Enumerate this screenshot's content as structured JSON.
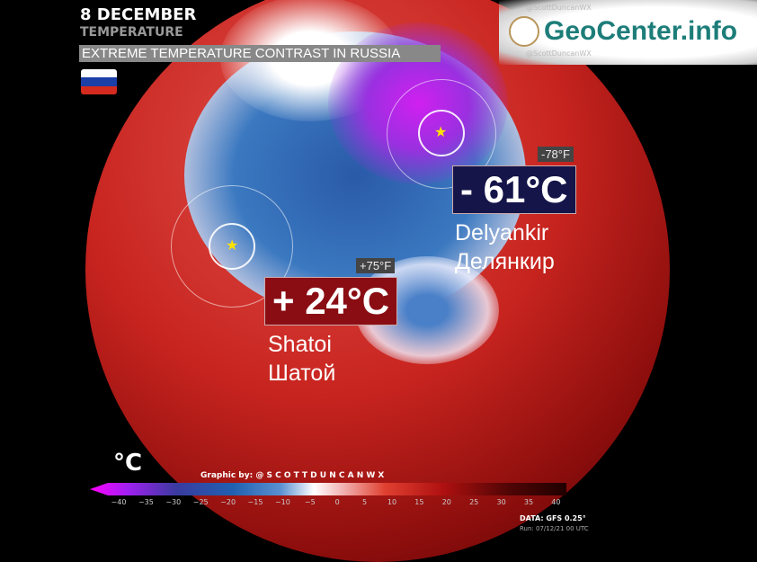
{
  "header": {
    "date": "8 DECEMBER",
    "variable": "TEMPERATURE",
    "subtitle": "EXTREME TEMPERATURE CONTRAST IN RUSSIA"
  },
  "flag": {
    "country": "Russia",
    "colors": [
      "#ffffff",
      "#1c3fa8",
      "#d52b1e"
    ]
  },
  "watermark": {
    "logo_text": "GeoCenter.info",
    "logo_color": "#1d7d79",
    "facebook": "@ScottDuncanWX",
    "twitter": "@ScottDuncanWX"
  },
  "cold": {
    "fahrenheit": "-78°F",
    "celsius": "- 61°C",
    "name_en": "Delyankir",
    "name_ru": "Делянкир",
    "box_color": "#15154a"
  },
  "hot": {
    "fahrenheit": "+75°F",
    "celsius": "+ 24°C",
    "name_en": "Shatoi",
    "name_ru": "Шатой",
    "box_color": "#8a0d14"
  },
  "legend": {
    "unit": "°C",
    "credit": "Graphic by: @ S C O T T D U N C A N W X",
    "ticks": [
      "−40",
      "−35",
      "−30",
      "−25",
      "−20",
      "−15",
      "−10",
      "−5",
      "0",
      "5",
      "10",
      "15",
      "20",
      "25",
      "30",
      "35",
      "40"
    ]
  },
  "footer": {
    "data": "DATA: GFS 0.25°",
    "run": "Run: 07/12/21 00 UTC"
  }
}
